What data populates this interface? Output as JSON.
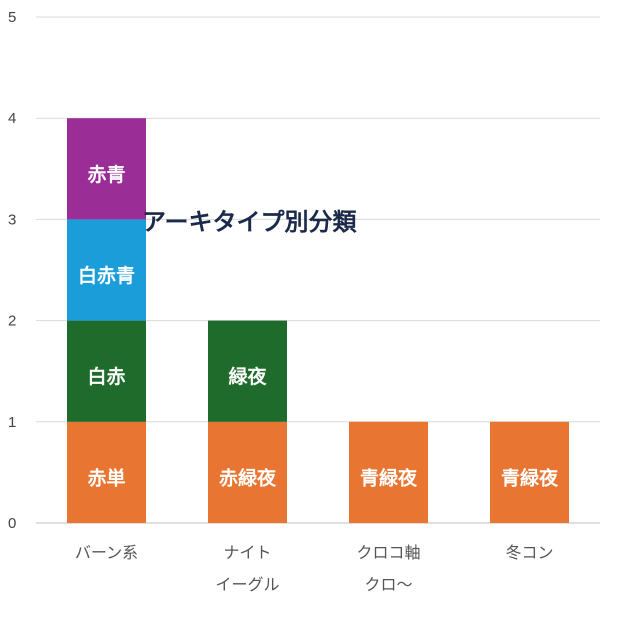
{
  "chart_data": {
    "type": "bar",
    "stacked": true,
    "title": "アーキタイプ別分類",
    "xlabel": "",
    "ylabel": "",
    "ylim": [
      0,
      5
    ],
    "yticks": [
      "0",
      "1",
      "2",
      "3",
      "4",
      "5"
    ],
    "grid": true,
    "categories": [
      {
        "lines": [
          "バーン系"
        ]
      },
      {
        "lines": [
          "ナイト",
          "イーグル"
        ]
      },
      {
        "lines": [
          "クロコ軸",
          "クロ〜"
        ]
      },
      {
        "lines": [
          "冬コン"
        ]
      }
    ],
    "stacks": [
      [
        {
          "label": "赤単",
          "value": 1,
          "color": "#e87632"
        },
        {
          "label": "白赤",
          "value": 1,
          "color": "#1e6b2b"
        },
        {
          "label": "白赤青",
          "value": 1,
          "color": "#1a9dd8"
        },
        {
          "label": "赤青",
          "value": 1,
          "color": "#9b2d96"
        }
      ],
      [
        {
          "label": "赤緑夜",
          "value": 1,
          "color": "#e87632"
        },
        {
          "label": "緑夜",
          "value": 1,
          "color": "#1e6b2b"
        }
      ],
      [
        {
          "label": "青緑夜",
          "value": 1,
          "color": "#e87632"
        }
      ],
      [
        {
          "label": "青緑夜",
          "value": 1,
          "color": "#e87632"
        }
      ]
    ]
  }
}
